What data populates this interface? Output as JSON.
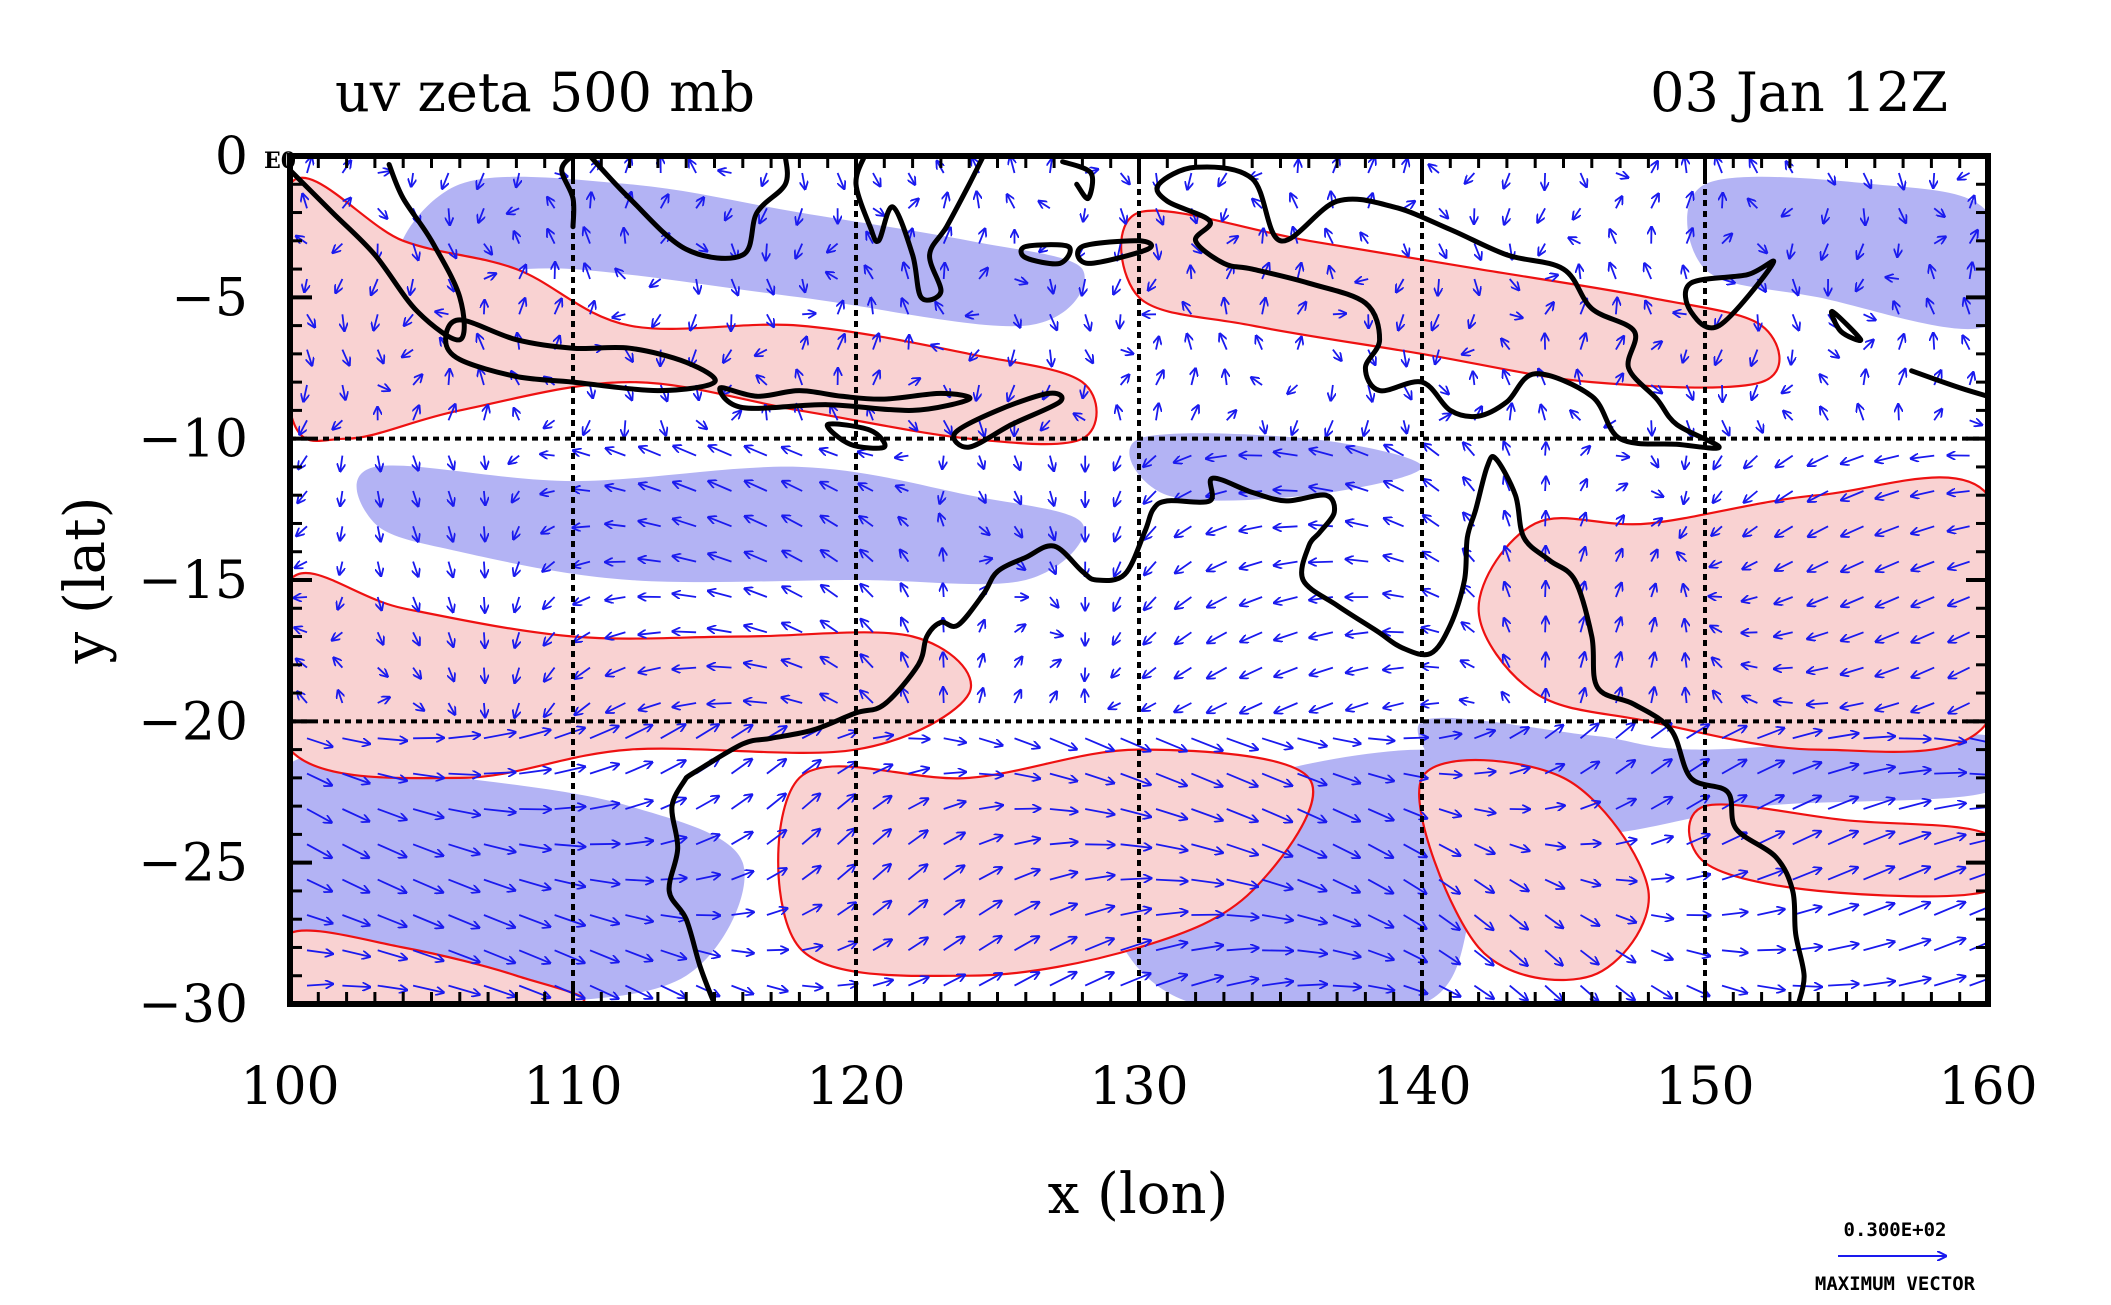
{
  "title": {
    "left": "uv zeta 500 mb",
    "right": "03 Jan 12Z"
  },
  "corner_label": "E0",
  "legend": {
    "value": "0.300E+02",
    "caption": "MAXIMUM VECTOR"
  },
  "colors": {
    "positive_fill": "#f9d2d2",
    "positive_contour": "#ee1111",
    "negative_fill": "#b3b3f4",
    "vector": "#1a1aee",
    "coast": "#000000",
    "grid": "#000000"
  },
  "chart_data": {
    "type": "map-vector-contour",
    "xlabel": "x (lon)",
    "ylabel": "y (lat)",
    "xlim": [
      100,
      160
    ],
    "ylim": [
      -30,
      0
    ],
    "x_ticks": [
      100,
      110,
      120,
      130,
      140,
      150,
      160
    ],
    "y_ticks": [
      0,
      -5,
      -10,
      -15,
      -20,
      -25,
      -30
    ],
    "x_tick_labels": [
      "100",
      "110",
      "120",
      "130",
      "140",
      "150",
      "160"
    ],
    "y_tick_labels": [
      "0",
      "−5",
      "−10",
      "−15",
      "−20",
      "−25",
      "−30"
    ],
    "grid_lines_x": [
      110,
      120,
      130,
      140,
      150
    ],
    "grid_lines_y": [
      -10,
      -20
    ],
    "max_vector": 30,
    "positive_regions": [
      [
        [
          100,
          -1
        ],
        [
          104,
          -3
        ],
        [
          108,
          -4
        ],
        [
          112,
          -6
        ],
        [
          118,
          -6
        ],
        [
          124,
          -7
        ],
        [
          128,
          -8
        ],
        [
          128,
          -10
        ],
        [
          124,
          -10
        ],
        [
          118,
          -9
        ],
        [
          112,
          -8
        ],
        [
          106,
          -9
        ],
        [
          102,
          -10
        ],
        [
          100,
          -9
        ]
      ],
      [
        [
          100,
          -15
        ],
        [
          104,
          -16
        ],
        [
          110,
          -17
        ],
        [
          116,
          -17
        ],
        [
          122,
          -17
        ],
        [
          124,
          -19
        ],
        [
          120,
          -21
        ],
        [
          112,
          -21
        ],
        [
          106,
          -22
        ],
        [
          100,
          -21
        ]
      ],
      [
        [
          144,
          -13
        ],
        [
          148,
          -13
        ],
        [
          154,
          -12
        ],
        [
          160,
          -12
        ],
        [
          160,
          -20
        ],
        [
          154,
          -21
        ],
        [
          148,
          -20
        ],
        [
          144,
          -19
        ],
        [
          142,
          -16
        ]
      ],
      [
        [
          150,
          -23
        ],
        [
          155,
          -23.5
        ],
        [
          160,
          -24
        ],
        [
          160,
          -26
        ],
        [
          154,
          -26
        ],
        [
          150,
          -25
        ]
      ],
      [
        [
          118,
          -22
        ],
        [
          124,
          -22
        ],
        [
          130,
          -21
        ],
        [
          136,
          -22
        ],
        [
          134,
          -26
        ],
        [
          130,
          -28
        ],
        [
          124,
          -29
        ],
        [
          118,
          -28
        ]
      ],
      [
        [
          100,
          -27.5
        ],
        [
          104,
          -28
        ],
        [
          108,
          -29
        ],
        [
          110,
          -30
        ],
        [
          100,
          -30
        ]
      ],
      [
        [
          140,
          -22
        ],
        [
          145,
          -22
        ],
        [
          148,
          -26
        ],
        [
          146,
          -29
        ],
        [
          142,
          -28
        ]
      ],
      [
        [
          130,
          -2
        ],
        [
          136,
          -3
        ],
        [
          142,
          -4
        ],
        [
          148,
          -5
        ],
        [
          152,
          -6
        ],
        [
          152,
          -8
        ],
        [
          146,
          -8
        ],
        [
          140,
          -7
        ],
        [
          134,
          -6
        ],
        [
          130,
          -5
        ]
      ]
    ],
    "negative_regions": [
      [
        [
          103,
          -11
        ],
        [
          110,
          -11.5
        ],
        [
          118,
          -11
        ],
        [
          124,
          -12
        ],
        [
          128,
          -13
        ],
        [
          126,
          -15
        ],
        [
          120,
          -15
        ],
        [
          112,
          -15
        ],
        [
          106,
          -14
        ],
        [
          103,
          -13
        ]
      ],
      [
        [
          100,
          -21.5
        ],
        [
          106,
          -22
        ],
        [
          112,
          -23
        ],
        [
          116,
          -25
        ],
        [
          114,
          -29
        ],
        [
          108,
          -30
        ],
        [
          100,
          -30
        ],
        [
          100,
          -27
        ]
      ],
      [
        [
          130,
          -24
        ],
        [
          134,
          -22
        ],
        [
          140,
          -21
        ],
        [
          144,
          -22
        ],
        [
          142,
          -26
        ],
        [
          140,
          -30
        ],
        [
          132,
          -30
        ],
        [
          129,
          -27
        ]
      ],
      [
        [
          140,
          -20
        ],
        [
          146,
          -20.5
        ],
        [
          150,
          -21
        ],
        [
          160,
          -20.5
        ],
        [
          160,
          -22.5
        ],
        [
          152,
          -23
        ],
        [
          146,
          -24
        ],
        [
          142,
          -23
        ]
      ],
      [
        [
          106,
          -1
        ],
        [
          112,
          -1
        ],
        [
          118,
          -2
        ],
        [
          124,
          -3
        ],
        [
          128,
          -4
        ],
        [
          126,
          -6
        ],
        [
          118,
          -5
        ],
        [
          110,
          -4
        ],
        [
          104,
          -4
        ]
      ],
      [
        [
          130,
          -10
        ],
        [
          136,
          -10
        ],
        [
          140,
          -11
        ],
        [
          136,
          -12
        ],
        [
          131,
          -12
        ]
      ],
      [
        [
          150,
          -1
        ],
        [
          156,
          -1
        ],
        [
          160,
          -2
        ],
        [
          160,
          -6
        ],
        [
          154,
          -5
        ],
        [
          150,
          -4
        ]
      ],
      [
        [
          120,
          -23
        ],
        [
          126,
          -23
        ],
        [
          128,
          -26
        ],
        [
          124,
          -28
        ],
        [
          120,
          -27
        ]
      ]
    ],
    "coastlines": [
      [
        [
          100,
          -0.5
        ],
        [
          101.5,
          -2
        ],
        [
          103,
          -3.5
        ],
        [
          104.5,
          -5.5
        ],
        [
          106,
          -6.5
        ],
        [
          106,
          -5
        ],
        [
          105,
          -3
        ],
        [
          104,
          -1.5
        ],
        [
          103.5,
          -0.3
        ]
      ],
      [
        [
          106,
          -5.8
        ],
        [
          108,
          -6.5
        ],
        [
          110,
          -6.8
        ],
        [
          112,
          -6.8
        ],
        [
          114,
          -7.3
        ],
        [
          115,
          -8
        ],
        [
          113,
          -8.3
        ],
        [
          110,
          -8
        ],
        [
          108,
          -7.8
        ],
        [
          106,
          -7.2
        ],
        [
          105.5,
          -6.5
        ],
        [
          106,
          -5.8
        ]
      ],
      [
        [
          115.2,
          -8.2
        ],
        [
          116.5,
          -8.5
        ],
        [
          118,
          -8.3
        ],
        [
          119.5,
          -8.5
        ],
        [
          121,
          -8.6
        ],
        [
          123,
          -8.4
        ],
        [
          124,
          -8.6
        ],
        [
          122,
          -9
        ],
        [
          119,
          -8.8
        ],
        [
          116,
          -8.9
        ],
        [
          115.2,
          -8.2
        ]
      ],
      [
        [
          119,
          -9.5
        ],
        [
          120.5,
          -9.7
        ],
        [
          121,
          -10.3
        ],
        [
          119.8,
          -10.2
        ],
        [
          119,
          -9.5
        ]
      ],
      [
        [
          123.5,
          -9.8
        ],
        [
          125,
          -9
        ],
        [
          126.8,
          -8.4
        ],
        [
          127.2,
          -8.7
        ],
        [
          125.5,
          -9.5
        ],
        [
          124,
          -10.3
        ],
        [
          123.5,
          -9.8
        ]
      ],
      [
        [
          110,
          -2.5
        ],
        [
          110,
          -1.5
        ],
        [
          109.6,
          -0.5
        ],
        [
          110,
          0
        ],
        [
          110.3,
          0
        ]
      ],
      [
        [
          110.6,
          0
        ],
        [
          112,
          -1.5
        ],
        [
          114,
          -3.3
        ],
        [
          116,
          -3.5
        ],
        [
          116.5,
          -2
        ],
        [
          117.5,
          -1
        ],
        [
          117.5,
          0
        ]
      ],
      [
        [
          120.3,
          0
        ],
        [
          120,
          -1
        ],
        [
          120.5,
          -2.5
        ],
        [
          120.8,
          -3
        ],
        [
          121.3,
          -1.8
        ],
        [
          122,
          -3.5
        ],
        [
          122.3,
          -5
        ],
        [
          123,
          -4.8
        ],
        [
          122.6,
          -3.5
        ],
        [
          123.2,
          -2.5
        ],
        [
          124,
          -1
        ],
        [
          124.5,
          0
        ]
      ],
      [
        [
          126,
          -3.2
        ],
        [
          127.5,
          -3.2
        ],
        [
          127.2,
          -3.8
        ],
        [
          126,
          -3.6
        ],
        [
          126,
          -3.2
        ]
      ],
      [
        [
          128,
          -3.2
        ],
        [
          130,
          -3
        ],
        [
          130.3,
          -3.3
        ],
        [
          128.2,
          -3.8
        ],
        [
          128,
          -3.2
        ]
      ],
      [
        [
          127.3,
          -0.2
        ],
        [
          128.3,
          -0.6
        ],
        [
          128.2,
          -1.5
        ],
        [
          127.8,
          -1
        ]
      ],
      [
        [
          130.7,
          -1
        ],
        [
          132,
          -0.4
        ],
        [
          134,
          -0.8
        ],
        [
          135,
          -3
        ],
        [
          137,
          -1.6
        ],
        [
          139,
          -1.8
        ],
        [
          141,
          -2.6
        ],
        [
          143,
          -3.5
        ],
        [
          145,
          -4
        ],
        [
          146,
          -5.4
        ],
        [
          147.5,
          -6.2
        ],
        [
          147.3,
          -7.5
        ],
        [
          148.3,
          -8.6
        ],
        [
          149,
          -9.5
        ],
        [
          150.5,
          -10.3
        ],
        [
          149,
          -10.2
        ],
        [
          147,
          -10
        ],
        [
          146,
          -8.5
        ],
        [
          144,
          -7.7
        ],
        [
          143,
          -8.7
        ],
        [
          142,
          -9.2
        ],
        [
          141,
          -9
        ],
        [
          140,
          -8
        ],
        [
          138.5,
          -8.3
        ],
        [
          138,
          -7.5
        ],
        [
          138.5,
          -6.5
        ],
        [
          138,
          -5.2
        ],
        [
          136,
          -4.5
        ],
        [
          134,
          -4
        ],
        [
          133,
          -3.8
        ],
        [
          132,
          -3
        ],
        [
          132.5,
          -2.3
        ],
        [
          131,
          -1.6
        ],
        [
          130.7,
          -1
        ]
      ],
      [
        [
          149.5,
          -4.5
        ],
        [
          151.5,
          -4.2
        ],
        [
          152.4,
          -3.8
        ],
        [
          150.5,
          -6
        ],
        [
          149.5,
          -5.5
        ],
        [
          149.5,
          -4.5
        ]
      ],
      [
        [
          154.5,
          -5.5
        ],
        [
          155.5,
          -6.5
        ],
        [
          154.8,
          -6.2
        ],
        [
          154.5,
          -5.5
        ]
      ],
      [
        [
          157.3,
          -7.6
        ],
        [
          159,
          -8.2
        ],
        [
          160,
          -8.5
        ]
      ],
      [
        [
          114,
          -22
        ],
        [
          114.3,
          -21.8
        ],
        [
          116,
          -20.8
        ],
        [
          117,
          -20.6
        ],
        [
          118.5,
          -20.3
        ],
        [
          120,
          -19.7
        ],
        [
          121,
          -19.4
        ],
        [
          122.2,
          -18
        ],
        [
          122.5,
          -17
        ],
        [
          123,
          -16.5
        ],
        [
          123.6,
          -16.6
        ],
        [
          124.5,
          -15.5
        ],
        [
          125,
          -14.7
        ],
        [
          126,
          -14.2
        ],
        [
          127,
          -13.8
        ],
        [
          128,
          -14.7
        ],
        [
          128.5,
          -15
        ],
        [
          129.5,
          -14.8
        ],
        [
          130.2,
          -13.3
        ],
        [
          130.5,
          -12.5
        ],
        [
          131,
          -12.2
        ],
        [
          132.5,
          -12.2
        ],
        [
          132.6,
          -11.4
        ],
        [
          134,
          -11.9
        ],
        [
          135.2,
          -12.2
        ],
        [
          136.6,
          -12
        ],
        [
          136.9,
          -12.6
        ],
        [
          136.4,
          -13.3
        ],
        [
          136,
          -13.8
        ],
        [
          135.8,
          -15
        ],
        [
          137,
          -15.9
        ],
        [
          138.4,
          -16.8
        ],
        [
          139.3,
          -17.4
        ],
        [
          140.3,
          -17.6
        ],
        [
          141,
          -16.6
        ],
        [
          141.5,
          -15
        ],
        [
          141.6,
          -13.5
        ],
        [
          141.9,
          -12.5
        ],
        [
          142.3,
          -11
        ],
        [
          142.6,
          -10.7
        ],
        [
          143.3,
          -12
        ],
        [
          143.6,
          -13.5
        ],
        [
          144.5,
          -14.3
        ],
        [
          145.4,
          -15
        ],
        [
          146,
          -17
        ],
        [
          146.2,
          -18.8
        ],
        [
          147.5,
          -19.4
        ],
        [
          148.8,
          -20.3
        ],
        [
          149.5,
          -22
        ],
        [
          150.8,
          -22.5
        ],
        [
          151.1,
          -23.8
        ],
        [
          152.5,
          -24.8
        ],
        [
          153.1,
          -26
        ],
        [
          153.2,
          -27.5
        ],
        [
          153.5,
          -29
        ],
        [
          153.3,
          -30
        ]
      ],
      [
        [
          114,
          -22
        ],
        [
          113.5,
          -23
        ],
        [
          113.7,
          -24.5
        ],
        [
          113.4,
          -26
        ],
        [
          114,
          -27
        ],
        [
          114.5,
          -28.7
        ],
        [
          115,
          -30
        ]
      ]
    ]
  }
}
